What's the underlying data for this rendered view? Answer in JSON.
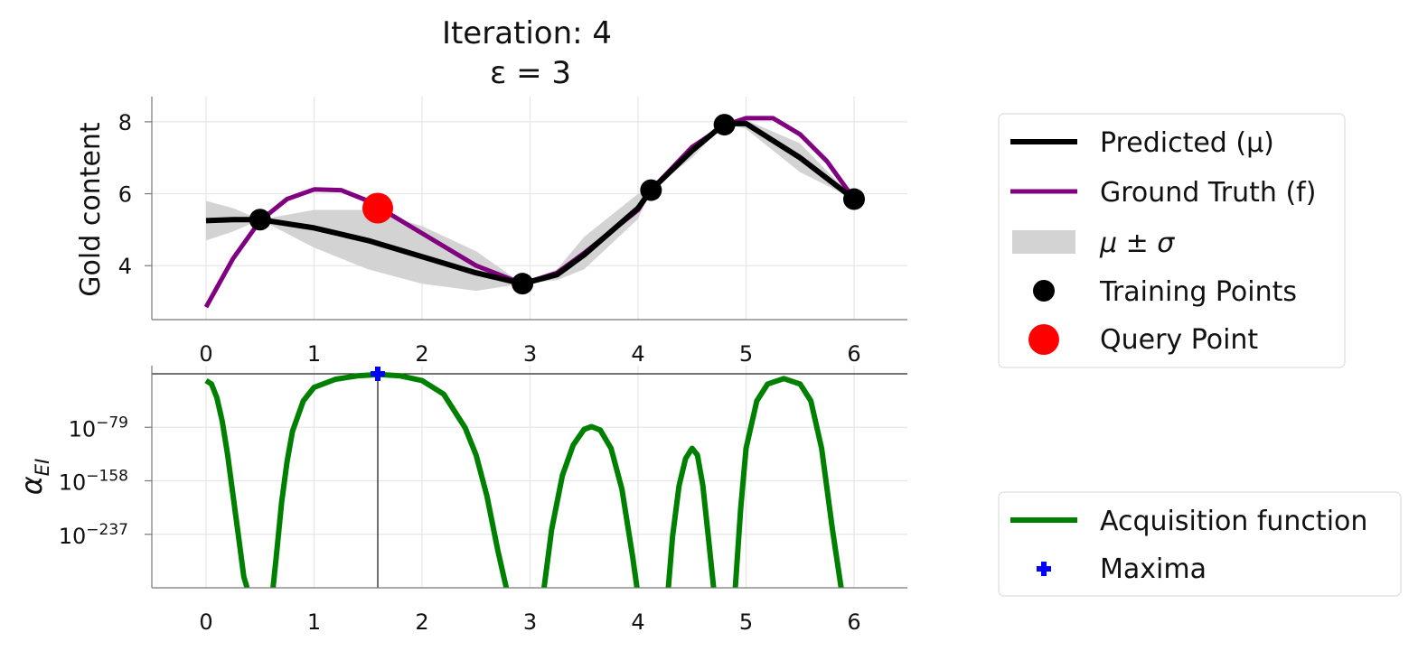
{
  "title_line1": "Iteration: 4",
  "title_line2": "ε = 3",
  "colors": {
    "predicted": "#000000",
    "ground_truth": "#800080",
    "band": "#d3d3d3",
    "acquisition": "#008000",
    "maxima": "#0000ff",
    "query": "#ff0000",
    "grid": "#e6e6e6",
    "spine": "#777777"
  },
  "legend_top": {
    "predicted": "Predicted (μ)",
    "ground_truth": "Ground Truth (f)",
    "band": "μ ± σ",
    "training": "Training Points",
    "query": "Query Point"
  },
  "legend_bottom": {
    "acquisition": "Acquisition function",
    "maxima": "Maxima"
  },
  "chart_data": [
    {
      "type": "line",
      "ylabel": "Gold content",
      "xlim": [
        -0.5,
        6.5
      ],
      "ylim": [
        2.5,
        8.7
      ],
      "xticks": [
        0,
        1,
        2,
        3,
        4,
        5,
        6
      ],
      "yticks": [
        4,
        6,
        8
      ],
      "grid": true,
      "legend_position": "right",
      "series": [
        {
          "name": "Predicted (μ)",
          "x": [
            0,
            0.25,
            0.5,
            1,
            1.5,
            2,
            2.5,
            2.93,
            3.25,
            3.5,
            4,
            4.12,
            4.5,
            4.8,
            5,
            5.5,
            6
          ],
          "y": [
            5.25,
            5.28,
            5.28,
            5.05,
            4.7,
            4.25,
            3.8,
            3.5,
            3.75,
            4.3,
            5.6,
            6.1,
            7.2,
            7.95,
            7.95,
            7.0,
            5.85
          ]
        },
        {
          "name": "Ground Truth (f)",
          "x": [
            0,
            0.25,
            0.5,
            0.75,
            1,
            1.25,
            1.5,
            2,
            2.5,
            2.93,
            3.25,
            3.5,
            4,
            4.12,
            4.5,
            4.8,
            5,
            5.25,
            5.5,
            5.75,
            6
          ],
          "y": [
            2.85,
            4.2,
            5.25,
            5.85,
            6.12,
            6.1,
            5.8,
            4.9,
            4.0,
            3.5,
            3.8,
            4.35,
            5.55,
            6.1,
            7.3,
            7.9,
            8.1,
            8.1,
            7.65,
            6.9,
            5.85
          ]
        }
      ],
      "band": {
        "name": "μ ± σ",
        "x": [
          0,
          0.25,
          0.5,
          1,
          1.5,
          2,
          2.5,
          2.93,
          3.25,
          3.5,
          4,
          4.12,
          4.5,
          4.8,
          5,
          5.5,
          6
        ],
        "upper": [
          5.8,
          5.6,
          5.28,
          5.55,
          5.55,
          5.1,
          4.4,
          3.5,
          3.9,
          4.8,
          6.0,
          6.1,
          7.35,
          7.95,
          8.05,
          7.4,
          5.85
        ],
        "lower": [
          4.7,
          4.95,
          5.28,
          4.5,
          3.9,
          3.5,
          3.3,
          3.5,
          3.6,
          3.9,
          5.3,
          6.1,
          7.0,
          7.95,
          7.8,
          6.6,
          5.85
        ]
      },
      "training_points": {
        "name": "Training Points",
        "x": [
          0.5,
          2.93,
          4.12,
          4.8,
          6
        ],
        "y": [
          5.28,
          3.5,
          6.1,
          7.92,
          5.85
        ]
      },
      "query_point": {
        "name": "Query Point",
        "x": 1.59,
        "y": 5.6
      }
    },
    {
      "type": "line",
      "ylabel": "α_EI",
      "ylabel_main": "α",
      "ylabel_sub": "EI",
      "xlim": [
        -0.5,
        6.5
      ],
      "xticks": [
        0,
        1,
        2,
        3,
        4,
        5,
        6
      ],
      "y_scale": "log",
      "ylim_log10": [
        -316,
        0
      ],
      "yticks_log10": [
        -79,
        -158,
        -237
      ],
      "ytick_labels": [
        {
          "base": "10",
          "exp": "−79"
        },
        {
          "base": "10",
          "exp": "−158"
        },
        {
          "base": "10",
          "exp": "−237"
        }
      ],
      "grid": true,
      "legend_position": "right",
      "series": [
        {
          "name": "Acquisition function",
          "segments": [
            {
              "x": [
                0,
                0.05,
                0.1,
                0.15,
                0.2,
                0.25,
                0.3,
                0.35,
                0.38
              ],
              "log10_y": [
                -10,
                -15,
                -35,
                -70,
                -120,
                -180,
                -240,
                -300,
                -316
              ]
            },
            {
              "x": [
                0.62,
                0.65,
                0.7,
                0.75,
                0.8,
                0.9,
                1.0,
                1.2,
                1.4,
                1.6,
                1.8,
                2.0,
                2.2,
                2.4,
                2.5,
                2.6,
                2.7,
                2.78
              ],
              "log10_y": [
                -316,
                -270,
                -190,
                -130,
                -85,
                -40,
                -20,
                -8,
                -3,
                -1,
                -3,
                -10,
                -30,
                -80,
                -120,
                -180,
                -260,
                -316
              ]
            },
            {
              "x": [
                3.13,
                3.2,
                3.3,
                3.4,
                3.5,
                3.57,
                3.65,
                3.75,
                3.85,
                3.95,
                3.99
              ],
              "log10_y": [
                -316,
                -230,
                -150,
                -105,
                -82,
                -78,
                -83,
                -110,
                -170,
                -270,
                -316
              ]
            },
            {
              "x": [
                4.28,
                4.32,
                4.38,
                4.44,
                4.5,
                4.55,
                4.6,
                4.65,
                4.7
              ],
              "log10_y": [
                -316,
                -240,
                -165,
                -125,
                -110,
                -120,
                -165,
                -240,
                -316
              ]
            },
            {
              "x": [
                4.9,
                4.95,
                5.0,
                5.1,
                5.2,
                5.35,
                5.5,
                5.6,
                5.7,
                5.8,
                5.88
              ],
              "log10_y": [
                -316,
                -200,
                -110,
                -40,
                -15,
                -7,
                -15,
                -40,
                -110,
                -230,
                -316
              ]
            }
          ]
        }
      ],
      "maxima": {
        "name": "Maxima",
        "x": 1.59,
        "log10_y": 0
      }
    }
  ]
}
